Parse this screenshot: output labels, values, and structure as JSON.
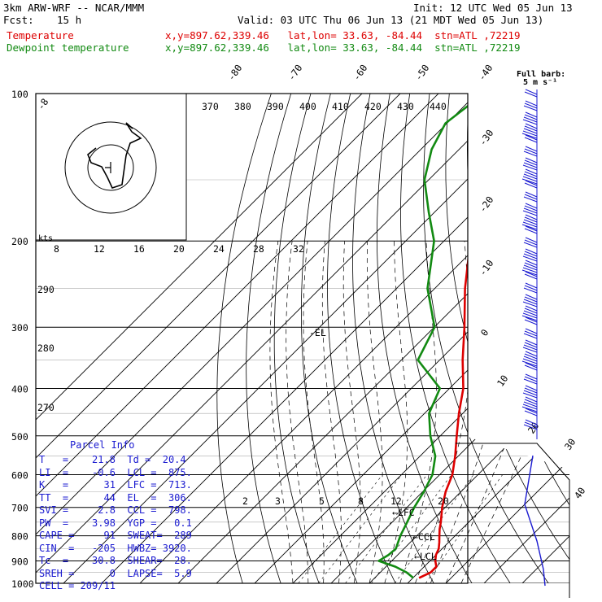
{
  "header": {
    "model": "3km ARW-WRF -- NCAR/MMM",
    "fcst_label": "Fcst:",
    "fcst_hours": "15 h",
    "init": "Init: 12 UTC Wed 05 Jun 13",
    "valid": "Valid: 03 UTC Thu 06 Jun 13 (21 MDT Wed 05 Jun 13)",
    "temp_label": "Temperature",
    "dew_label": "Dewpoint temperature",
    "temp_info": "x,y=897.62,339.46   lat,lon= 33.63, -84.44  stn=ATL ,72219",
    "dew_info": "x,y=897.62,339.46   lat,lon= 33.63, -84.44  stn=ATL ,72219"
  },
  "colors": {
    "temperature": "#dd0000",
    "dewpoint": "#128a12",
    "text_blue": "#1a1ad0",
    "barb": "#1a1ad0"
  },
  "barbs_label": [
    "Full barb:",
    "5 m s⁻¹"
  ],
  "hodograph": {
    "label": "kts",
    "ring_labels": [
      "8",
      "12",
      "16",
      "20",
      "24",
      "28",
      "32"
    ]
  },
  "theta_labels": [
    "370",
    "380",
    "390",
    "400",
    "410",
    "420",
    "430",
    "440"
  ],
  "mixing_ratio_labels": [
    "2",
    "3",
    "5",
    "8",
    "12",
    "20"
  ],
  "theta_side_labels": [
    "290",
    "280",
    "270"
  ],
  "markers": {
    "el": "-EL",
    "lfc": "LFC",
    "ccl": "CCL",
    "lcl": "LCL"
  },
  "parcel": {
    "title": "Parcel Info",
    "rows": [
      "T   =    21.8  Td =  20.4",
      "LI  =    -0.6  LCL =  875.",
      "K   =      31  LFC =  713.",
      "TT  =      44  EL  =  306.",
      "SVI =     2.8  CCL =  798.",
      "PW  =    3.98  YGP =   0.1",
      "CAPE =     91  SWEAT=  289",
      "CIN  =   -205  HWBZ= 3920.",
      "Tc  =    30.8  SHEAR=  28.",
      "SREH =      0  LAPSE=  5.9",
      "CELL = 209/11"
    ]
  },
  "chart_data": {
    "type": "line",
    "title": "",
    "xlabel": "",
    "ylabel": "",
    "y_scale": "log",
    "ylim": [
      1000,
      100
    ],
    "xlim_temp_C": [
      -80,
      40
    ],
    "pressure_ticks": [
      "100",
      "200",
      "300",
      "400",
      "500",
      "600",
      "700",
      "800",
      "900",
      "1000"
    ],
    "temperature_ticks": [
      "-80",
      "-70",
      "-60",
      "-50",
      "-40",
      "-30",
      "-20",
      "-10",
      "0",
      "10",
      "20",
      "30",
      "40"
    ],
    "series": [
      {
        "name": "Temperature",
        "pressure": [
          975,
          950,
          925,
          900,
          875,
          850,
          825,
          800,
          775,
          750,
          700,
          650,
          600,
          550,
          500,
          450,
          400,
          350,
          300,
          250,
          200,
          175,
          150,
          130,
          115,
          100
        ],
        "values": [
          21.6,
          23.2,
          23.2,
          21.4,
          20.0,
          19.1,
          17.6,
          15.9,
          14.2,
          12.7,
          9.2,
          6.0,
          3.3,
          -0.8,
          -5.7,
          -11.0,
          -16.4,
          -24.0,
          -32.1,
          -42.1,
          -53.1,
          -59.6,
          -68.0,
          -69.8,
          -71.6,
          -71.9
        ]
      },
      {
        "name": "Dewpoint temperature",
        "pressure": [
          975,
          950,
          925,
          900,
          875,
          850,
          825,
          800,
          775,
          750,
          700,
          650,
          600,
          550,
          500,
          450,
          400,
          350,
          300,
          250,
          200,
          175,
          150,
          130,
          115,
          100
        ],
        "values": [
          20.1,
          16.9,
          12.5,
          6.6,
          7.6,
          7.9,
          6.8,
          5.7,
          4.8,
          3.9,
          1.9,
          0.3,
          -1.9,
          -6.0,
          -12.6,
          -18.8,
          -22.5,
          -35.7,
          -39.9,
          -51.9,
          -62.6,
          -71.4,
          -81.1,
          -87.2,
          -90.4,
          -88.1
        ]
      }
    ]
  }
}
